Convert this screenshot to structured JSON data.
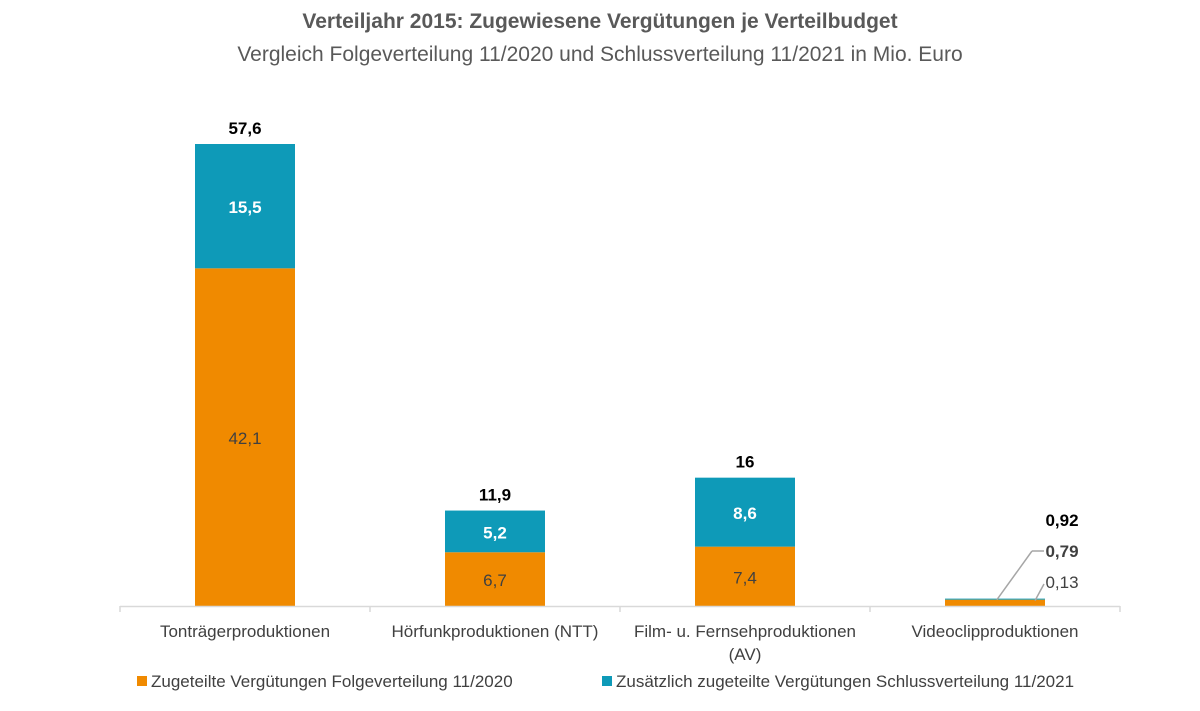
{
  "chart_data": {
    "type": "bar",
    "stacked": true,
    "title": "Verteiljahr 2015: Zugewiesene Vergütungen je Verteilbudget",
    "subtitle": "Vergleich Folgeverteilung 11/2020 und Schlussverteilung 11/2021 in Mio. Euro",
    "categories": [
      "Tonträgerproduktionen",
      "Hörfunkproduktionen (NTT)",
      "Film- u. Fernsehproduktionen (AV)",
      "Videoclipproduktionen"
    ],
    "series": [
      {
        "name": "Zugeteilte Vergütungen Folgeverteilung 11/2020",
        "color": "#F08A00",
        "values": [
          42.1,
          6.7,
          7.4,
          0.79
        ],
        "labels": [
          "42,1",
          "6,7",
          "7,4",
          "0,79"
        ]
      },
      {
        "name": "Zusätzlich zugeteilte Vergütungen Schlussverteilung 11/2021",
        "color": "#0E9AB8",
        "values": [
          15.5,
          5.2,
          8.6,
          0.13
        ],
        "labels": [
          "15,5",
          "5,2",
          "8,6",
          "0,13"
        ]
      }
    ],
    "totals": [
      57.6,
      11.9,
      16,
      0.92
    ],
    "total_labels": [
      "57,6",
      "11,9",
      "16",
      "0,92"
    ],
    "ylim": [
      0,
      60
    ],
    "grid": false,
    "legend_position": "bottom"
  }
}
